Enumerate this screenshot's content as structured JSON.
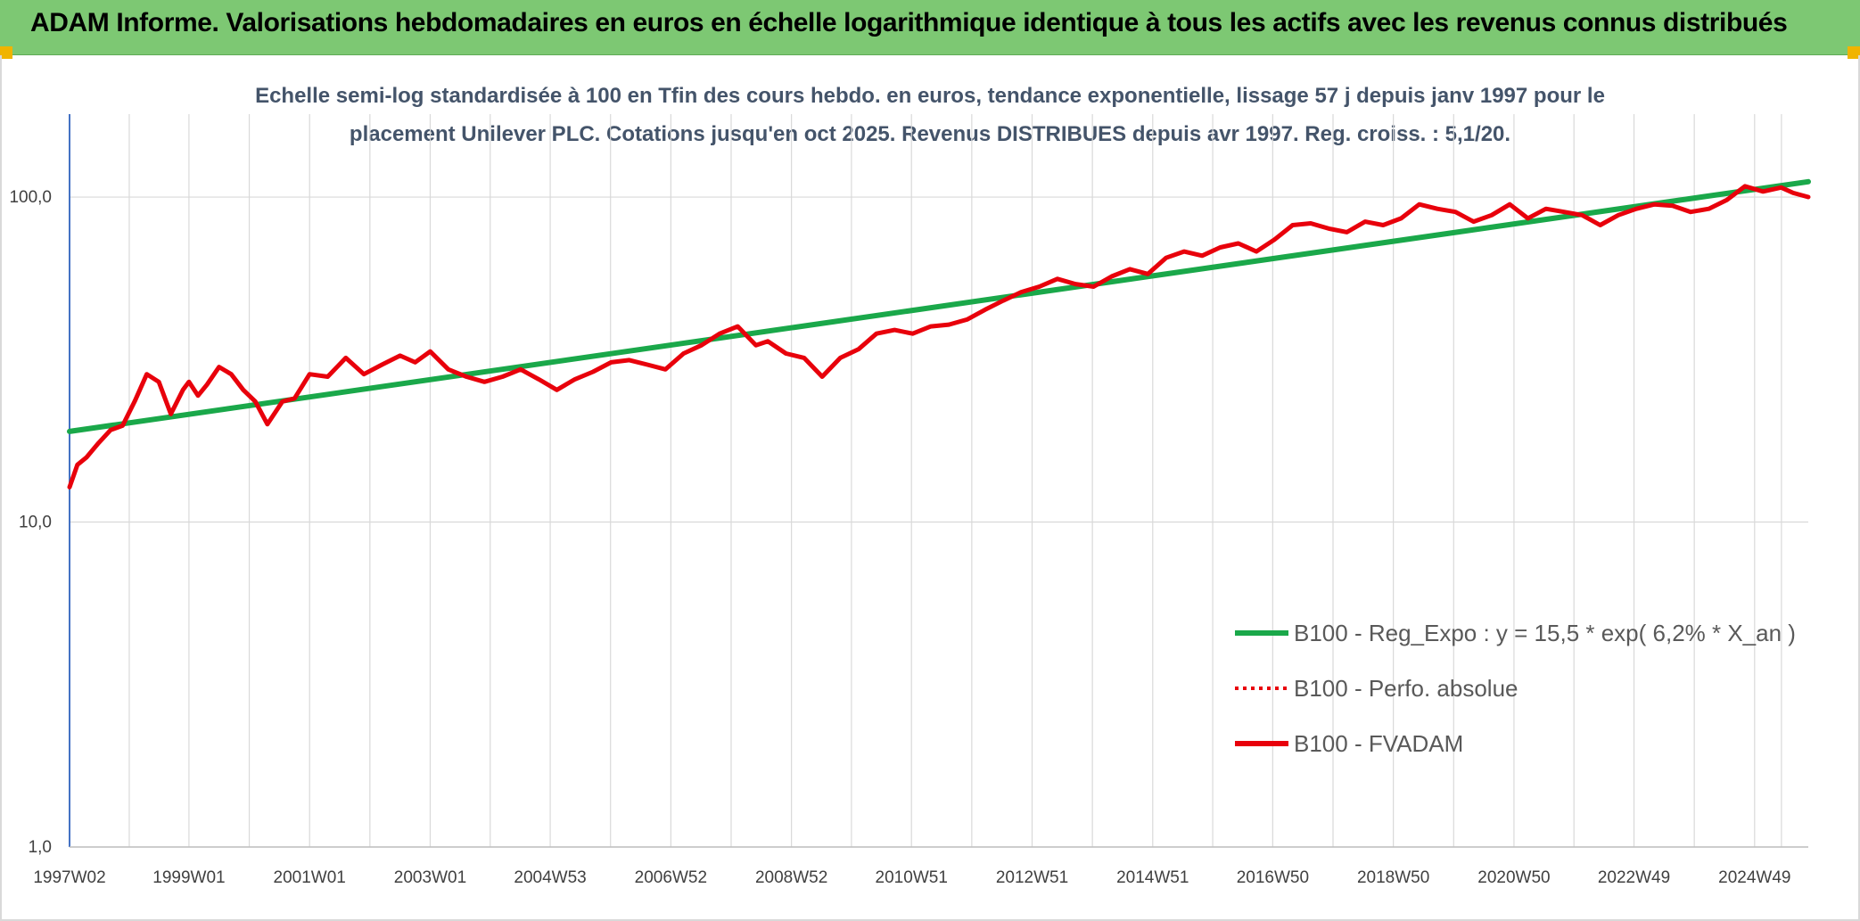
{
  "header": {
    "title": "ADAM Informe. Valorisations hebdomadaires en euros en échelle logarithmique identique à tous les actifs avec les revenus connus distribués"
  },
  "colors": {
    "banner": "#7dc873",
    "accent_corner": "#f0b400",
    "trend": "#1aa84a",
    "price": "#e8000b",
    "title_text": "#44546a",
    "grid": "#d9d9d9",
    "axis": "#4472c4"
  },
  "chart_data": {
    "type": "line",
    "title": "Echelle semi-log standardisée à 100 en Tfin des cours hebdo. en euros, tendance exponentielle, lissage 57 j depuis janv 1997 pour le",
    "subtitle": "placement Unilever PLC. Cotations jusqu'en oct 2025. Revenus DISTRIBUES depuis avr 1997. Reg. croiss. : 5,1/20.",
    "xlabel": "",
    "ylabel": "",
    "y_scale": "log",
    "ylim": [
      1,
      180
    ],
    "xlim": [
      1997.02,
      2025.85
    ],
    "y_ticks": [
      1,
      10,
      100
    ],
    "y_tick_labels": [
      "1,0",
      "10,0",
      "100,0"
    ],
    "x_tick_labels": [
      "1997W02",
      "1999W01",
      "2001W01",
      "2003W01",
      "2004W53",
      "2006W52",
      "2008W52",
      "2010W51",
      "2012W51",
      "2014W51",
      "2016W50",
      "2018W50",
      "2020W50",
      "2022W49",
      "2024W49"
    ],
    "x_tick_positions": [
      1997.02,
      1999.0,
      2001.0,
      2003.0,
      2004.99,
      2006.99,
      2008.99,
      2010.98,
      2012.98,
      2014.98,
      2016.97,
      2018.97,
      2020.97,
      2022.96,
      2024.96
    ],
    "grid": true,
    "legend_position": "bottom-right",
    "series": [
      {
        "name": "B100 - Reg_Expo : y = 15,5 * exp( 6,2% *  X_an )",
        "color": "#1aa84a",
        "style": "solid",
        "x": [
          1997.02,
          2025.85
        ],
        "values": [
          19.0,
          111.5
        ]
      },
      {
        "name": "B100 - Perfo. absolue",
        "color": "#e8000b",
        "style": "dotted",
        "x": [],
        "values": []
      },
      {
        "name": "B100 - FVADAM",
        "color": "#e8000b",
        "style": "solid",
        "x": [
          1997.02,
          1997.15,
          1997.3,
          1997.5,
          1997.7,
          1997.9,
          1998.1,
          1998.3,
          1998.5,
          1998.7,
          1998.9,
          1999.0,
          1999.15,
          1999.3,
          1999.5,
          1999.7,
          1999.9,
          2000.1,
          2000.3,
          2000.55,
          2000.75,
          2001.0,
          2001.3,
          2001.6,
          2001.9,
          2002.2,
          2002.5,
          2002.75,
          2003.0,
          2003.3,
          2003.6,
          2003.9,
          2004.2,
          2004.5,
          2004.8,
          2005.1,
          2005.4,
          2005.7,
          2006.0,
          2006.3,
          2006.6,
          2006.9,
          2007.2,
          2007.5,
          2007.8,
          2008.1,
          2008.4,
          2008.6,
          2008.9,
          2009.2,
          2009.5,
          2009.8,
          2010.1,
          2010.4,
          2010.7,
          2011.0,
          2011.3,
          2011.6,
          2011.9,
          2012.2,
          2012.5,
          2012.8,
          2013.1,
          2013.4,
          2013.7,
          2014.0,
          2014.3,
          2014.6,
          2014.9,
          2015.2,
          2015.5,
          2015.8,
          2016.1,
          2016.4,
          2016.7,
          2017.0,
          2017.3,
          2017.6,
          2017.9,
          2018.2,
          2018.5,
          2018.8,
          2019.1,
          2019.4,
          2019.7,
          2020.0,
          2020.3,
          2020.6,
          2020.9,
          2021.2,
          2021.5,
          2021.8,
          2022.1,
          2022.4,
          2022.7,
          2023.0,
          2023.3,
          2023.6,
          2023.9,
          2024.2,
          2024.5,
          2024.8,
          2025.1,
          2025.4,
          2025.6,
          2025.85
        ],
        "values": [
          12.8,
          15.0,
          15.8,
          17.5,
          19.2,
          19.8,
          23.5,
          28.5,
          27.0,
          21.5,
          25.5,
          27.0,
          24.5,
          26.5,
          30.0,
          28.5,
          25.5,
          23.5,
          20.0,
          23.5,
          24.0,
          28.5,
          28.0,
          32.0,
          28.5,
          30.5,
          32.5,
          31.0,
          33.5,
          29.5,
          28.0,
          27.0,
          28.0,
          29.5,
          27.5,
          25.5,
          27.5,
          29.0,
          31.0,
          31.5,
          30.5,
          29.5,
          33.0,
          35.0,
          38.0,
          40.0,
          35.0,
          36.0,
          33.0,
          32.0,
          28.0,
          32.0,
          34.0,
          38.0,
          39.0,
          38.0,
          40.0,
          40.5,
          42.0,
          45.0,
          48.0,
          51.0,
          53.0,
          56.0,
          54.0,
          53.0,
          57.0,
          60.0,
          58.0,
          65.0,
          68.0,
          66.0,
          70.0,
          72.0,
          68.0,
          74.0,
          82.0,
          83.0,
          80.0,
          78.0,
          84.0,
          82.0,
          86.0,
          95.0,
          92.0,
          90.0,
          84.0,
          88.0,
          95.0,
          86.0,
          92.0,
          90.0,
          88.0,
          82.0,
          88.0,
          92.0,
          95.0,
          94.0,
          90.0,
          92.0,
          98.0,
          108.0,
          104.0,
          107.0,
          103.0,
          100.0
        ]
      }
    ]
  }
}
